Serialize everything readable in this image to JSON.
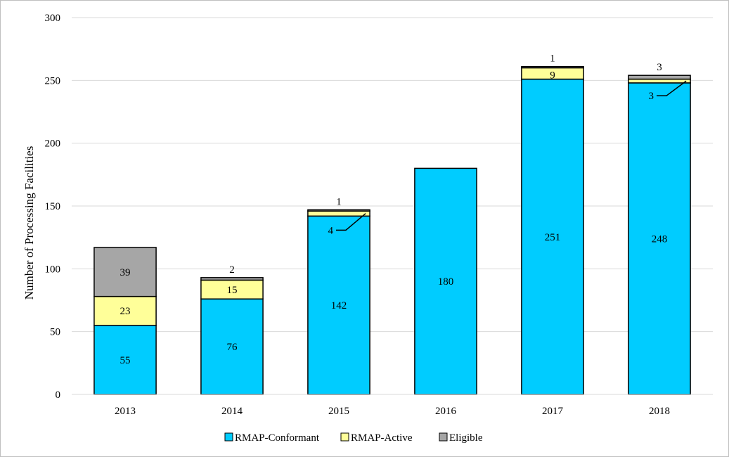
{
  "chart_data": {
    "type": "bar",
    "stacked": true,
    "title": "",
    "xlabel": "",
    "ylabel": "Number of Processing Facilities",
    "ylim": [
      0,
      300
    ],
    "yticks": [
      0,
      50,
      100,
      150,
      200,
      250,
      300
    ],
    "grid": true,
    "legend_position": "bottom",
    "categories": [
      "2013",
      "2014",
      "2015",
      "2016",
      "2017",
      "2018"
    ],
    "series": [
      {
        "name": "RMAP-Conformant",
        "color": "#00ccff",
        "values": [
          55,
          76,
          142,
          180,
          251,
          248
        ],
        "labels": [
          "55",
          "76",
          "142",
          "180",
          "251",
          "248"
        ]
      },
      {
        "name": "RMAP-Active",
        "color": "#ffff99",
        "values": [
          23,
          15,
          4,
          0,
          9,
          3
        ],
        "labels": [
          "23",
          "15",
          "4",
          "",
          "9",
          "3"
        ]
      },
      {
        "name": "Eligible",
        "color": "#a6a6a6",
        "values": [
          39,
          2,
          1,
          0,
          1,
          3
        ],
        "labels": [
          "39",
          "2",
          "1",
          "",
          "1",
          "3"
        ]
      }
    ]
  }
}
